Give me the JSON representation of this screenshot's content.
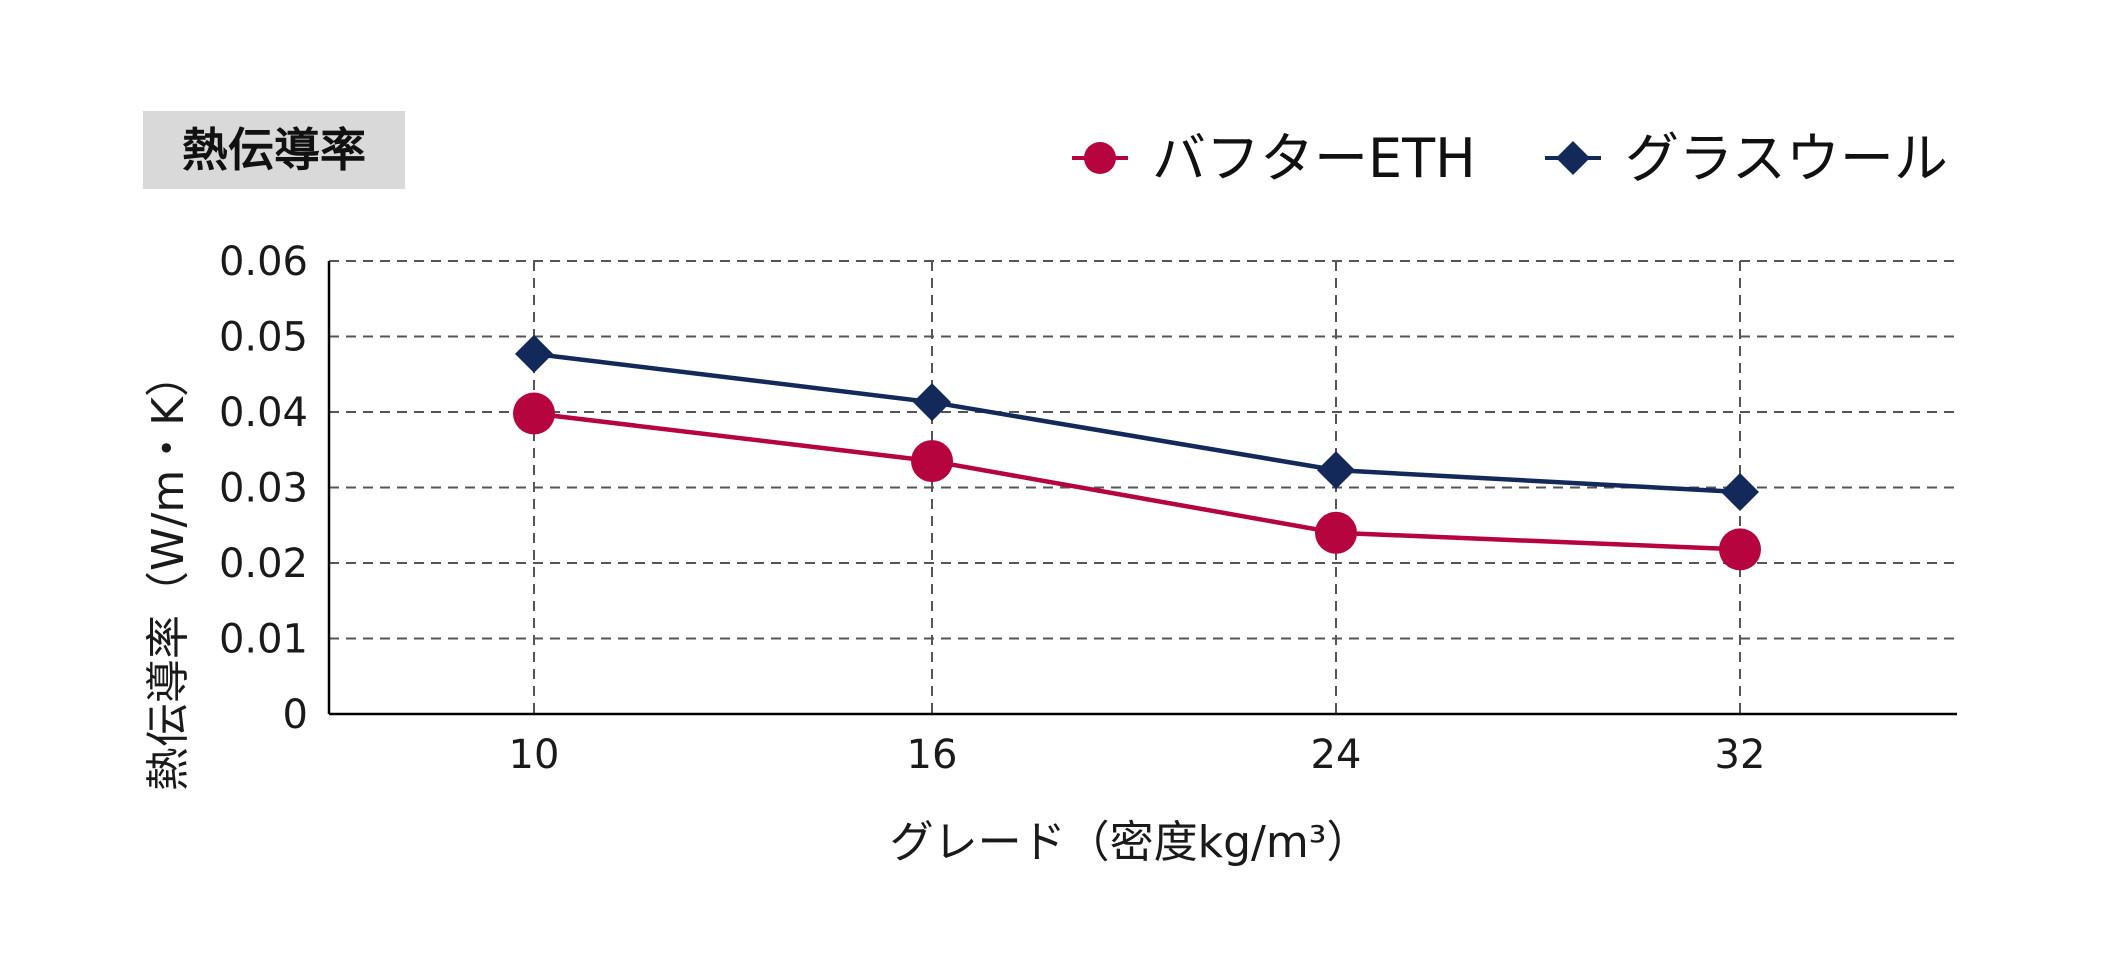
{
  "chart_data": {
    "type": "line",
    "title": "熱伝導率",
    "xlabel": "グレード（密度kg/m³）",
    "ylabel": "熱伝導率（W/m・K）",
    "categories": [
      "10",
      "16",
      "24",
      "32"
    ],
    "ylim": [
      0,
      0.06
    ],
    "yticks": [
      0,
      0.01,
      0.02,
      0.03,
      0.04,
      0.05,
      0.06
    ],
    "ytick_labels": [
      "0",
      "0.01",
      "0.02",
      "0.03",
      "0.04",
      "0.05",
      "0.06"
    ],
    "grid": true,
    "legend_position": "top-right",
    "series": [
      {
        "name": "バフターETH",
        "values": [
          0.0398,
          0.0335,
          0.024,
          0.0218
        ],
        "color": "#b5043e",
        "marker": "circle"
      },
      {
        "name": "グラスウール",
        "values": [
          0.0477,
          0.0413,
          0.0323,
          0.0294
        ],
        "color": "#13295a",
        "marker": "diamond"
      }
    ]
  },
  "colors": {
    "title_box": "#d9d9d9",
    "grid": "#555555",
    "axis": "#000000"
  }
}
